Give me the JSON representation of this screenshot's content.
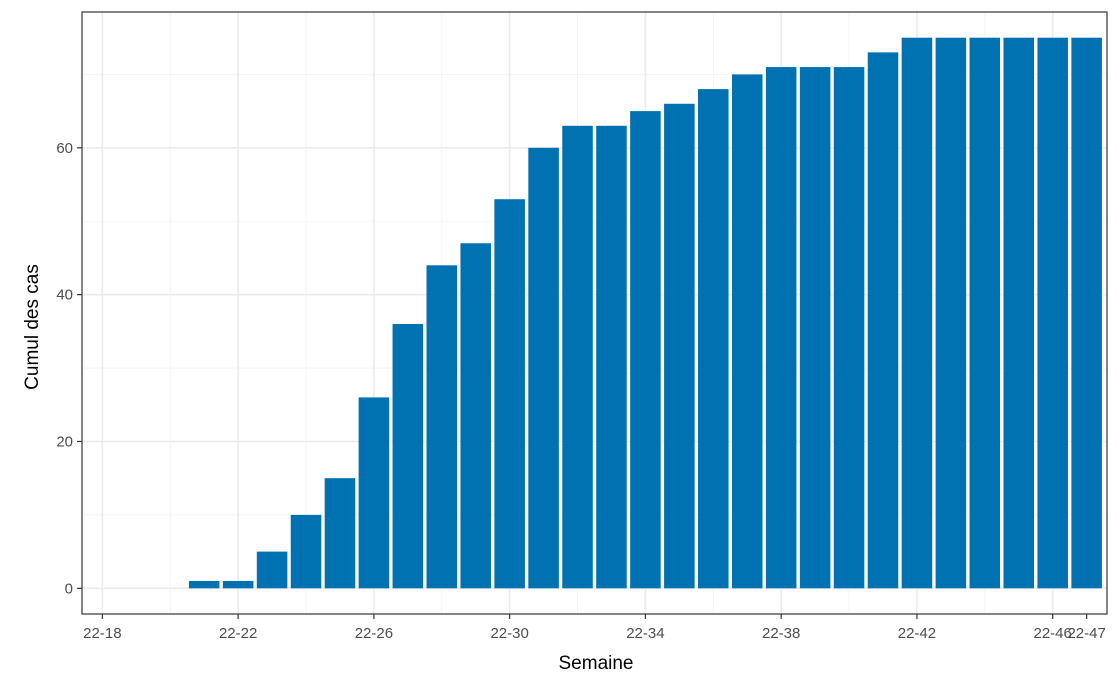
{
  "chart_data": {
    "type": "bar",
    "title": "",
    "xlabel": "Semaine",
    "ylabel": "Cumul des cas",
    "categories": [
      "22-21",
      "22-22",
      "22-23",
      "22-24",
      "22-25",
      "22-26",
      "22-27",
      "22-28",
      "22-29",
      "22-30",
      "22-31",
      "22-32",
      "22-33",
      "22-34",
      "22-35",
      "22-36",
      "22-37",
      "22-38",
      "22-39",
      "22-40",
      "22-41",
      "22-42",
      "22-43",
      "22-44",
      "22-45",
      "22-46",
      "22-47"
    ],
    "values": [
      1,
      1,
      5,
      10,
      15,
      26,
      36,
      44,
      47,
      53,
      60,
      63,
      63,
      65,
      66,
      68,
      70,
      71,
      71,
      71,
      73,
      75,
      75,
      75,
      75,
      75,
      75
    ],
    "x_range": [
      17.4,
      47.6
    ],
    "ylim": [
      -3.5,
      78.5
    ],
    "x_ticks": [
      {
        "week": 18,
        "label": "22-18"
      },
      {
        "week": 22,
        "label": "22-22"
      },
      {
        "week": 26,
        "label": "22-26"
      },
      {
        "week": 30,
        "label": "22-30"
      },
      {
        "week": 34,
        "label": "22-34"
      },
      {
        "week": 38,
        "label": "22-38"
      },
      {
        "week": 42,
        "label": "22-42"
      },
      {
        "week": 46,
        "label": "22-46"
      },
      {
        "week": 47,
        "label": "22-47"
      }
    ],
    "y_ticks": [
      0,
      20,
      40,
      60
    ],
    "bar_color": "#0072b2",
    "grid": true,
    "legend": "none"
  }
}
